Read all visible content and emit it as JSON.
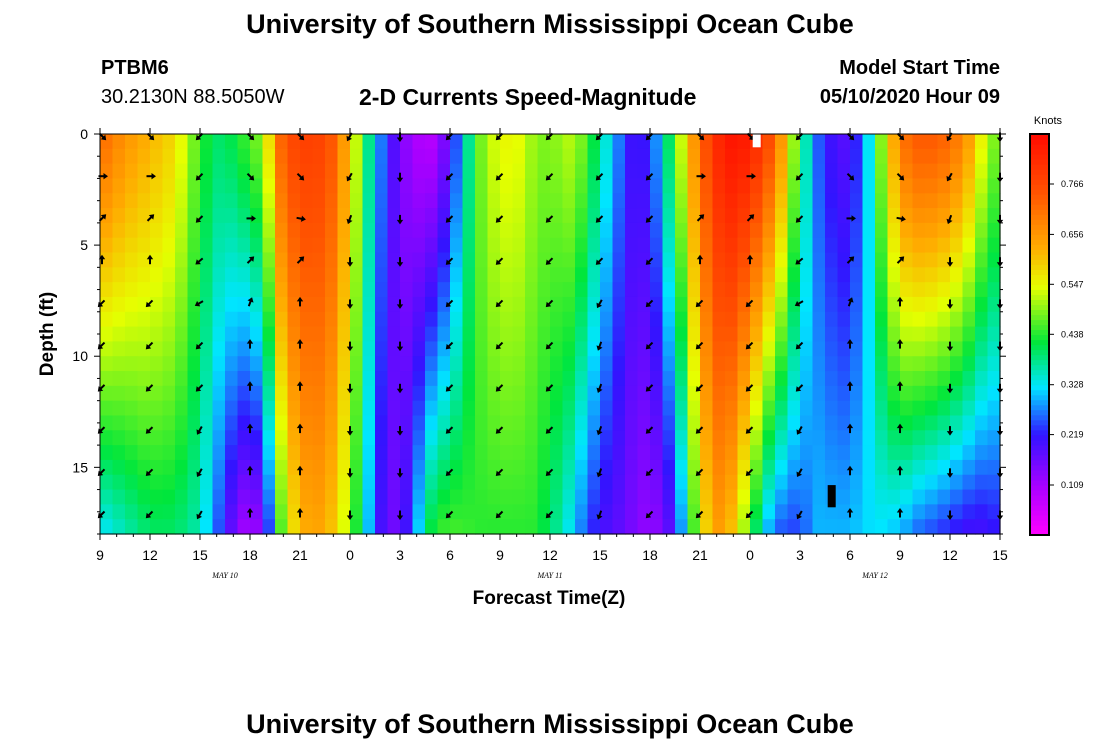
{
  "page": {
    "title_top": "University of Southern Mississippi Ocean Cube",
    "title_bottom": "University of Southern Mississippi Ocean Cube",
    "station_id": "PTBM6",
    "station_coords": "30.2130N 88.5050W",
    "subtitle": "2-D Currents Speed-Magnitude",
    "model_start_label": "Model Start Time",
    "model_start_value": "05/10/2020 Hour 09"
  },
  "chart_data": {
    "type": "heatmap",
    "title": "2-D Currents Speed-Magnitude",
    "xlabel": "Forecast Time(Z)",
    "ylabel": "Depth (ft)",
    "x_range_hours": [
      0,
      54
    ],
    "x_tick_labels": [
      "9",
      "12",
      "15",
      "18",
      "21",
      "0",
      "3",
      "6",
      "9",
      "12",
      "15",
      "18",
      "21",
      "0",
      "3",
      "6",
      "9",
      "12",
      "15"
    ],
    "day_labels": [
      {
        "text": "MAY  10",
        "hour": 7.5
      },
      {
        "text": "MAY  11",
        "hour": 27
      },
      {
        "text": "MAY  12",
        "hour": 46.5
      }
    ],
    "y_range_ft": [
      0,
      18
    ],
    "y_reversed": true,
    "y_ticks": [
      0,
      5,
      10,
      15
    ],
    "colorbar": {
      "title": "Knots",
      "min": 0.0,
      "max": 0.875,
      "ticks": [
        0.766,
        0.656,
        0.547,
        0.438,
        0.328,
        0.219,
        0.109
      ]
    },
    "speed_profile_knots": {
      "hours": [
        0,
        1.5,
        3,
        4.5,
        6,
        6.8,
        7.6,
        8.4,
        9.2,
        10,
        11,
        12,
        13,
        14,
        15,
        16,
        17,
        18,
        19,
        20,
        21,
        22,
        23,
        24,
        25,
        26,
        27,
        28,
        29,
        30,
        31,
        32,
        33,
        34,
        35,
        36,
        37,
        38,
        39,
        40,
        41,
        42,
        43,
        44,
        45,
        46,
        47,
        48,
        49,
        50,
        51,
        52,
        53,
        54
      ],
      "surface": [
        0.72,
        0.66,
        0.62,
        0.58,
        0.45,
        0.4,
        0.4,
        0.44,
        0.46,
        0.55,
        0.75,
        0.78,
        0.78,
        0.74,
        0.6,
        0.4,
        0.25,
        0.15,
        0.1,
        0.09,
        0.18,
        0.36,
        0.5,
        0.55,
        0.55,
        0.5,
        0.48,
        0.52,
        0.48,
        0.38,
        0.28,
        0.2,
        0.22,
        0.38,
        0.55,
        0.72,
        0.82,
        0.86,
        0.84,
        0.78,
        0.64,
        0.42,
        0.26,
        0.2,
        0.18,
        0.3,
        0.52,
        0.7,
        0.74,
        0.74,
        0.72,
        0.66,
        0.54,
        0.46
      ],
      "bottom": [
        0.32,
        0.36,
        0.4,
        0.4,
        0.36,
        0.28,
        0.2,
        0.12,
        0.1,
        0.2,
        0.5,
        0.62,
        0.64,
        0.6,
        0.5,
        0.32,
        0.18,
        0.15,
        0.3,
        0.44,
        0.46,
        0.45,
        0.44,
        0.44,
        0.44,
        0.44,
        0.4,
        0.34,
        0.26,
        0.2,
        0.18,
        0.15,
        0.12,
        0.16,
        0.3,
        0.55,
        0.65,
        0.6,
        0.45,
        0.3,
        0.24,
        0.24,
        0.3,
        0.3,
        0.3,
        0.32,
        0.32,
        0.3,
        0.26,
        0.24,
        0.22,
        0.2,
        0.2,
        0.22
      ]
    },
    "vector_rows_ft": [
      0,
      1.9,
      3.8,
      5.7,
      7.6,
      9.5,
      11.4,
      13.3,
      15.2,
      17.1
    ],
    "vector_columns_hours": [
      0,
      3,
      6,
      9,
      12,
      15,
      18,
      21,
      24,
      27,
      30,
      33,
      36,
      39,
      42,
      45,
      48,
      51,
      54
    ],
    "vector_direction_deg": [
      [
        0,
        135,
        90,
        45,
        0,
        225,
        225,
        225,
        225
      ],
      [
        3,
        135,
        90,
        45,
        0,
        225,
        225,
        225,
        225
      ],
      [
        6,
        225,
        225,
        225,
        230,
        240,
        225,
        225,
        210
      ],
      [
        9,
        135,
        135,
        90,
        45,
        20,
        0,
        0,
        0
      ],
      [
        12,
        135,
        135,
        100,
        45,
        0,
        0,
        0,
        0
      ],
      [
        15,
        210,
        210,
        200,
        180,
        180,
        180,
        180,
        180
      ],
      [
        18,
        180,
        180,
        180,
        180,
        180,
        180,
        180,
        180
      ],
      [
        21,
        225,
        225,
        225,
        225,
        225,
        225,
        225,
        225
      ],
      [
        24,
        225,
        225,
        225,
        225,
        225,
        225,
        225,
        225
      ],
      [
        27,
        225,
        225,
        225,
        225,
        225,
        225,
        225,
        225
      ],
      [
        30,
        225,
        225,
        225,
        225,
        210,
        200,
        200,
        200
      ],
      [
        33,
        225,
        225,
        225,
        225,
        225,
        225,
        225,
        225
      ]
    ],
    "markers": [
      {
        "hour": 39.4,
        "depth_from": 0,
        "depth_to": 0.6,
        "color": "#ffffff"
      },
      {
        "hour": 43.9,
        "depth_from": 15.8,
        "depth_to": 16.8,
        "color": "#000000"
      }
    ]
  }
}
